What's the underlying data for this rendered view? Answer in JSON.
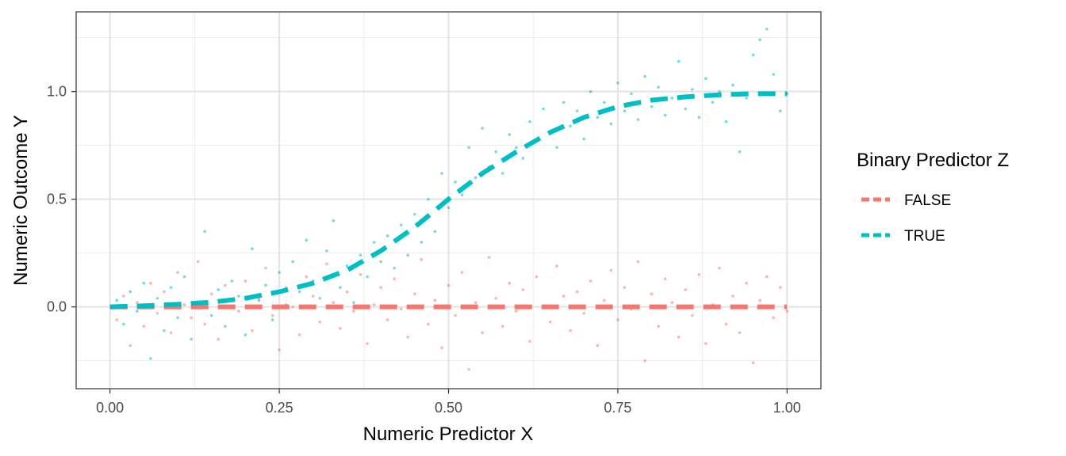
{
  "chart_data": {
    "type": "scatter",
    "xlabel": "Numeric Predictor X",
    "ylabel": "Numeric Outcome Y",
    "xlim": [
      -0.05,
      1.05
    ],
    "ylim": [
      -0.38,
      1.37
    ],
    "x_ticks": [
      0.0,
      0.25,
      0.5,
      0.75,
      1.0
    ],
    "x_tick_labels": [
      "0.00",
      "0.25",
      "0.50",
      "0.75",
      "1.00"
    ],
    "y_ticks": [
      0.0,
      0.5,
      1.0
    ],
    "y_tick_labels": [
      "0.0",
      "0.5",
      "1.0"
    ],
    "grid": true,
    "legend": {
      "title": "Binary Predictor Z",
      "position": "right",
      "entries": [
        "FALSE",
        "TRUE"
      ]
    },
    "colors": {
      "FALSE": "#F8766D",
      "TRUE": "#00BFC4"
    },
    "series": [
      {
        "name": "FALSE",
        "trend_line": {
          "style": "dashed",
          "x": [
            0.0,
            1.0
          ],
          "y": [
            0.0,
            0.0
          ]
        },
        "points": [
          [
            0.01,
            -0.06
          ],
          [
            0.02,
            0.05
          ],
          [
            0.03,
            -0.18
          ],
          [
            0.04,
            0.02
          ],
          [
            0.05,
            -0.09
          ],
          [
            0.06,
            0.11
          ],
          [
            0.07,
            -0.03
          ],
          [
            0.08,
            0.07
          ],
          [
            0.09,
            -0.12
          ],
          [
            0.1,
            0.16
          ],
          [
            0.11,
            0.01
          ],
          [
            0.12,
            -0.05
          ],
          [
            0.13,
            0.21
          ],
          [
            0.14,
            -0.08
          ],
          [
            0.15,
            0.06
          ],
          [
            0.16,
            -0.15
          ],
          [
            0.17,
            0.1
          ],
          [
            0.18,
            0.03
          ],
          [
            0.19,
            -0.02
          ],
          [
            0.2,
            0.12
          ],
          [
            0.21,
            -0.11
          ],
          [
            0.22,
            0.04
          ],
          [
            0.23,
            0.18
          ],
          [
            0.24,
            -0.04
          ],
          [
            0.25,
            -0.2
          ],
          [
            0.26,
            0.09
          ],
          [
            0.27,
            0.0
          ],
          [
            0.28,
            -0.13
          ],
          [
            0.29,
            0.14
          ],
          [
            0.3,
            0.05
          ],
          [
            0.31,
            -0.07
          ],
          [
            0.32,
            0.2
          ],
          [
            0.33,
            0.02
          ],
          [
            0.34,
            -0.1
          ],
          [
            0.35,
            0.07
          ],
          [
            0.36,
            -0.02
          ],
          [
            0.37,
            0.15
          ],
          [
            0.38,
            -0.17
          ],
          [
            0.39,
            0.01
          ],
          [
            0.4,
            0.09
          ],
          [
            0.41,
            -0.06
          ],
          [
            0.42,
            0.13
          ],
          [
            0.43,
            -0.01
          ],
          [
            0.44,
            -0.14
          ],
          [
            0.45,
            0.06
          ],
          [
            0.46,
            0.22
          ],
          [
            0.47,
            -0.08
          ],
          [
            0.48,
            0.03
          ],
          [
            0.49,
            -0.19
          ],
          [
            0.5,
            0.1
          ],
          [
            0.51,
            -0.04
          ],
          [
            0.52,
            0.16
          ],
          [
            0.53,
            -0.29
          ],
          [
            0.54,
            0.02
          ],
          [
            0.55,
            -0.12
          ],
          [
            0.56,
            0.23
          ],
          [
            0.57,
            0.04
          ],
          [
            0.58,
            -0.09
          ],
          [
            0.59,
            0.11
          ],
          [
            0.6,
            -0.02
          ],
          [
            0.61,
            0.08
          ],
          [
            0.62,
            -0.16
          ],
          [
            0.63,
            0.14
          ],
          [
            0.64,
            0.0
          ],
          [
            0.65,
            -0.07
          ],
          [
            0.66,
            0.19
          ],
          [
            0.67,
            0.05
          ],
          [
            0.68,
            -0.11
          ],
          [
            0.69,
            0.07
          ],
          [
            0.7,
            -0.03
          ],
          [
            0.71,
            0.12
          ],
          [
            0.72,
            -0.18
          ],
          [
            0.73,
            0.03
          ],
          [
            0.74,
            0.17
          ],
          [
            0.75,
            -0.06
          ],
          [
            0.76,
            0.09
          ],
          [
            0.77,
            -0.01
          ],
          [
            0.78,
            0.21
          ],
          [
            0.79,
            -0.25
          ],
          [
            0.8,
            0.06
          ],
          [
            0.81,
            -0.09
          ],
          [
            0.82,
            0.13
          ],
          [
            0.83,
            0.02
          ],
          [
            0.84,
            -0.14
          ],
          [
            0.85,
            0.08
          ],
          [
            0.86,
            -0.04
          ],
          [
            0.87,
            0.15
          ],
          [
            0.88,
            -0.17
          ],
          [
            0.89,
            0.01
          ],
          [
            0.9,
            0.18
          ],
          [
            0.91,
            -0.08
          ],
          [
            0.92,
            0.05
          ],
          [
            0.93,
            -0.12
          ],
          [
            0.94,
            0.11
          ],
          [
            0.95,
            -0.26
          ],
          [
            0.96,
            0.03
          ],
          [
            0.97,
            0.14
          ],
          [
            0.98,
            -0.05
          ],
          [
            0.99,
            0.09
          ],
          [
            1.0,
            -0.02
          ]
        ]
      },
      {
        "name": "TRUE",
        "trend_line": {
          "style": "dashed",
          "x": [
            0.0,
            0.05,
            0.1,
            0.15,
            0.2,
            0.25,
            0.3,
            0.35,
            0.4,
            0.45,
            0.5,
            0.55,
            0.6,
            0.65,
            0.7,
            0.75,
            0.8,
            0.85,
            0.9,
            0.95,
            1.0
          ],
          "y": [
            0.0,
            0.005,
            0.012,
            0.022,
            0.04,
            0.07,
            0.11,
            0.17,
            0.26,
            0.37,
            0.5,
            0.62,
            0.72,
            0.81,
            0.88,
            0.93,
            0.96,
            0.975,
            0.985,
            0.99,
            0.99
          ]
        },
        "points": [
          [
            0.01,
            0.03
          ],
          [
            0.02,
            -0.08
          ],
          [
            0.03,
            0.07
          ],
          [
            0.04,
            -0.02
          ],
          [
            0.05,
            0.11
          ],
          [
            0.06,
            -0.24
          ],
          [
            0.07,
            0.04
          ],
          [
            0.08,
            -0.11
          ],
          [
            0.09,
            0.09
          ],
          [
            0.1,
            -0.05
          ],
          [
            0.11,
            0.14
          ],
          [
            0.12,
            -0.15
          ],
          [
            0.13,
            0.02
          ],
          [
            0.14,
            0.35
          ],
          [
            0.15,
            -0.04
          ],
          [
            0.16,
            0.08
          ],
          [
            0.17,
            -0.09
          ],
          [
            0.18,
            0.12
          ],
          [
            0.19,
            0.05
          ],
          [
            0.2,
            -0.13
          ],
          [
            0.21,
            0.27
          ],
          [
            0.22,
            0.03
          ],
          [
            0.23,
            0.1
          ],
          [
            0.24,
            -0.06
          ],
          [
            0.25,
            0.16
          ],
          [
            0.26,
            0.01
          ],
          [
            0.27,
            0.21
          ],
          [
            0.28,
            0.07
          ],
          [
            0.29,
            0.31
          ],
          [
            0.3,
            0.12
          ],
          [
            0.31,
            0.04
          ],
          [
            0.32,
            0.26
          ],
          [
            0.33,
            0.4
          ],
          [
            0.34,
            0.09
          ],
          [
            0.35,
            0.19
          ],
          [
            0.36,
            0.02
          ],
          [
            0.37,
            0.24
          ],
          [
            0.38,
            0.14
          ],
          [
            0.39,
            0.3
          ],
          [
            0.4,
            0.21
          ],
          [
            0.41,
            0.33
          ],
          [
            0.42,
            0.18
          ],
          [
            0.43,
            0.38
          ],
          [
            0.44,
            0.24
          ],
          [
            0.45,
            0.43
          ],
          [
            0.46,
            0.3
          ],
          [
            0.47,
            0.5
          ],
          [
            0.48,
            0.35
          ],
          [
            0.49,
            0.62
          ],
          [
            0.5,
            0.46
          ],
          [
            0.51,
            0.58
          ],
          [
            0.52,
            0.52
          ],
          [
            0.53,
            0.74
          ],
          [
            0.54,
            0.6
          ],
          [
            0.55,
            0.83
          ],
          [
            0.56,
            0.65
          ],
          [
            0.57,
            0.72
          ],
          [
            0.58,
            0.62
          ],
          [
            0.59,
            0.8
          ],
          [
            0.6,
            0.74
          ],
          [
            0.61,
            0.69
          ],
          [
            0.62,
            0.86
          ],
          [
            0.63,
            0.77
          ],
          [
            0.64,
            0.92
          ],
          [
            0.65,
            0.81
          ],
          [
            0.66,
            0.74
          ],
          [
            0.67,
            0.95
          ],
          [
            0.68,
            0.84
          ],
          [
            0.69,
            0.91
          ],
          [
            0.7,
            0.78
          ],
          [
            0.71,
            1.0
          ],
          [
            0.72,
            0.88
          ],
          [
            0.73,
            0.95
          ],
          [
            0.74,
            0.85
          ],
          [
            0.75,
            1.04
          ],
          [
            0.76,
            0.91
          ],
          [
            0.77,
            0.99
          ],
          [
            0.78,
            0.87
          ],
          [
            0.79,
            1.07
          ],
          [
            0.8,
            0.93
          ],
          [
            0.81,
            1.02
          ],
          [
            0.82,
            0.89
          ],
          [
            0.83,
            0.97
          ],
          [
            0.84,
            1.14
          ],
          [
            0.85,
            0.92
          ],
          [
            0.86,
            1.01
          ],
          [
            0.87,
            0.88
          ],
          [
            0.88,
            1.06
          ],
          [
            0.89,
            0.95
          ],
          [
            0.9,
            1.0
          ],
          [
            0.91,
            0.86
          ],
          [
            0.92,
            1.03
          ],
          [
            0.93,
            0.72
          ],
          [
            0.94,
            0.97
          ],
          [
            0.95,
            1.17
          ],
          [
            0.96,
            1.24
          ],
          [
            0.97,
            1.29
          ],
          [
            0.98,
            1.08
          ],
          [
            0.99,
            0.91
          ],
          [
            1.0,
            0.99
          ]
        ]
      }
    ]
  }
}
